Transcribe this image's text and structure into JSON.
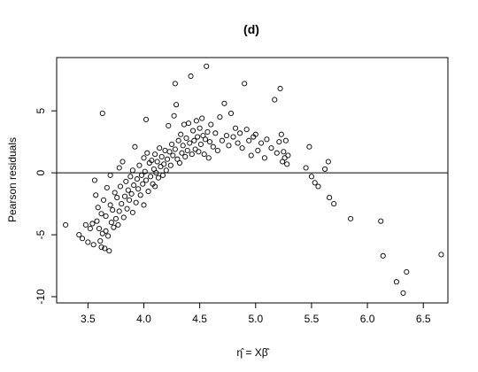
{
  "chart_data": {
    "type": "scatter",
    "title": "(d)",
    "xlabel": "η̂ = Xβ̂",
    "ylabel": "Pearson residuals",
    "xlim": [
      3.22,
      6.72
    ],
    "ylim": [
      -10.5,
      9.3
    ],
    "x_ticks": [
      3.5,
      4.0,
      4.5,
      5.0,
      5.5,
      6.0,
      6.5
    ],
    "x_tick_labels": [
      "3.5",
      "4.0",
      "4.5",
      "5.0",
      "5.5",
      "6.0",
      "6.5"
    ],
    "y_ticks": [
      -10,
      -5,
      0,
      5
    ],
    "y_tick_labels": [
      "-10",
      "-5",
      "0",
      "5"
    ],
    "hline": 0,
    "grid": false,
    "legend": "none",
    "points": [
      [
        3.3,
        -4.2
      ],
      [
        3.42,
        -5.0
      ],
      [
        3.45,
        -5.3
      ],
      [
        3.48,
        -4.2
      ],
      [
        3.5,
        -5.6
      ],
      [
        3.52,
        -4.5
      ],
      [
        3.54,
        -4.1
      ],
      [
        3.55,
        -5.8
      ],
      [
        3.56,
        -0.6
      ],
      [
        3.57,
        -1.8
      ],
      [
        3.58,
        -3.9
      ],
      [
        3.59,
        -2.8
      ],
      [
        3.6,
        -4.5
      ],
      [
        3.61,
        -5.5
      ],
      [
        3.62,
        -3.3
      ],
      [
        3.62,
        -6.0
      ],
      [
        3.63,
        4.8
      ],
      [
        3.63,
        -4.9
      ],
      [
        3.64,
        -2.2
      ],
      [
        3.65,
        -6.1
      ],
      [
        3.66,
        -3.5
      ],
      [
        3.66,
        -4.7
      ],
      [
        3.67,
        -1.2
      ],
      [
        3.68,
        -5.1
      ],
      [
        3.69,
        -6.3
      ],
      [
        3.7,
        -0.2
      ],
      [
        3.7,
        -2.6
      ],
      [
        3.71,
        -4.0
      ],
      [
        3.72,
        -3.0
      ],
      [
        3.73,
        -4.4
      ],
      [
        3.74,
        -1.6
      ],
      [
        3.75,
        -3.7
      ],
      [
        3.76,
        -2.0
      ],
      [
        3.77,
        -4.2
      ],
      [
        3.78,
        0.4
      ],
      [
        3.78,
        -3.1
      ],
      [
        3.79,
        -1.1
      ],
      [
        3.8,
        -2.5
      ],
      [
        3.81,
        0.9
      ],
      [
        3.82,
        -3.6
      ],
      [
        3.83,
        -1.9
      ],
      [
        3.84,
        -0.7
      ],
      [
        3.85,
        -2.9
      ],
      [
        3.86,
        -1.4
      ],
      [
        3.87,
        -2.2
      ],
      [
        3.88,
        -0.3
      ],
      [
        3.89,
        -1.7
      ],
      [
        3.9,
        0.2
      ],
      [
        3.9,
        -3.2
      ],
      [
        3.91,
        -1.0
      ],
      [
        3.92,
        2.1
      ],
      [
        3.93,
        -2.4
      ],
      [
        3.94,
        -0.5
      ],
      [
        3.95,
        -1.3
      ],
      [
        3.96,
        0.6
      ],
      [
        3.97,
        -1.8
      ],
      [
        3.98,
        -0.2
      ],
      [
        3.99,
        -0.9
      ],
      [
        4.0,
        1.2
      ],
      [
        4.0,
        -2.6
      ],
      [
        4.01,
        0.1
      ],
      [
        4.02,
        4.3
      ],
      [
        4.02,
        -0.6
      ],
      [
        4.03,
        1.6
      ],
      [
        4.04,
        -1.5
      ],
      [
        4.05,
        0.8
      ],
      [
        4.06,
        -0.3
      ],
      [
        4.07,
        1.0
      ],
      [
        4.08,
        -0.9
      ],
      [
        4.09,
        0.3
      ],
      [
        4.1,
        1.5
      ],
      [
        4.1,
        -1.1
      ],
      [
        4.11,
        0.0
      ],
      [
        4.12,
        0.9
      ],
      [
        4.13,
        -0.4
      ],
      [
        4.14,
        2.0
      ],
      [
        4.15,
        0.5
      ],
      [
        4.16,
        1.3
      ],
      [
        4.17,
        -0.2
      ],
      [
        4.18,
        0.7
      ],
      [
        4.19,
        1.8
      ],
      [
        4.2,
        0.2
      ],
      [
        4.21,
        1.1
      ],
      [
        4.22,
        3.8
      ],
      [
        4.23,
        1.7
      ],
      [
        4.24,
        0.6
      ],
      [
        4.25,
        2.3
      ],
      [
        4.26,
        1.4
      ],
      [
        4.27,
        4.6
      ],
      [
        4.28,
        7.2
      ],
      [
        4.28,
        1.9
      ],
      [
        4.29,
        5.5
      ],
      [
        4.3,
        1.1
      ],
      [
        4.31,
        2.6
      ],
      [
        4.32,
        0.8
      ],
      [
        4.33,
        3.1
      ],
      [
        4.34,
        1.6
      ],
      [
        4.35,
        2.2
      ],
      [
        4.36,
        3.9
      ],
      [
        4.37,
        1.3
      ],
      [
        4.38,
        2.8
      ],
      [
        4.39,
        1.8
      ],
      [
        4.4,
        4.0
      ],
      [
        4.41,
        2.4
      ],
      [
        4.42,
        7.8
      ],
      [
        4.43,
        1.5
      ],
      [
        4.44,
        3.4
      ],
      [
        4.45,
        2.6
      ],
      [
        4.46,
        1.9
      ],
      [
        4.47,
        4.2
      ],
      [
        4.48,
        2.9
      ],
      [
        4.49,
        1.7
      ],
      [
        4.5,
        3.6
      ],
      [
        4.51,
        2.3
      ],
      [
        4.52,
        4.4
      ],
      [
        4.53,
        3.0
      ],
      [
        4.54,
        1.5
      ],
      [
        4.55,
        2.7
      ],
      [
        4.56,
        8.6
      ],
      [
        4.57,
        3.3
      ],
      [
        4.58,
        1.2
      ],
      [
        4.59,
        2.5
      ],
      [
        4.6,
        3.9
      ],
      [
        4.62,
        2.1
      ],
      [
        4.64,
        3.2
      ],
      [
        4.66,
        1.8
      ],
      [
        4.68,
        4.5
      ],
      [
        4.7,
        2.6
      ],
      [
        4.72,
        5.6
      ],
      [
        4.74,
        3.0
      ],
      [
        4.76,
        2.2
      ],
      [
        4.78,
        4.8
      ],
      [
        4.8,
        2.9
      ],
      [
        4.82,
        3.6
      ],
      [
        4.84,
        2.4
      ],
      [
        4.86,
        3.2
      ],
      [
        4.88,
        2.0
      ],
      [
        4.9,
        7.2
      ],
      [
        4.92,
        3.5
      ],
      [
        4.94,
        2.6
      ],
      [
        4.96,
        1.4
      ],
      [
        4.98,
        2.9
      ],
      [
        5.0,
        3.1
      ],
      [
        5.02,
        1.8
      ],
      [
        5.05,
        2.4
      ],
      [
        5.08,
        1.2
      ],
      [
        5.1,
        2.7
      ],
      [
        5.14,
        2.0
      ],
      [
        5.17,
        5.9
      ],
      [
        5.19,
        1.6
      ],
      [
        5.21,
        2.5
      ],
      [
        5.22,
        6.8
      ],
      [
        5.23,
        3.1
      ],
      [
        5.24,
        0.9
      ],
      [
        5.25,
        1.7
      ],
      [
        5.26,
        1.2
      ],
      [
        5.27,
        2.6
      ],
      [
        5.28,
        0.7
      ],
      [
        5.29,
        1.4
      ],
      [
        5.45,
        0.4
      ],
      [
        5.48,
        2.1
      ],
      [
        5.5,
        -0.3
      ],
      [
        5.53,
        -0.8
      ],
      [
        5.56,
        -1.1
      ],
      [
        5.62,
        0.3
      ],
      [
        5.65,
        0.9
      ],
      [
        5.66,
        -2.0
      ],
      [
        5.7,
        -2.5
      ],
      [
        5.85,
        -3.7
      ],
      [
        6.12,
        -3.9
      ],
      [
        6.14,
        -6.7
      ],
      [
        6.26,
        -8.8
      ],
      [
        6.32,
        -9.7
      ],
      [
        6.35,
        -8.0
      ],
      [
        6.66,
        -6.6
      ]
    ]
  }
}
